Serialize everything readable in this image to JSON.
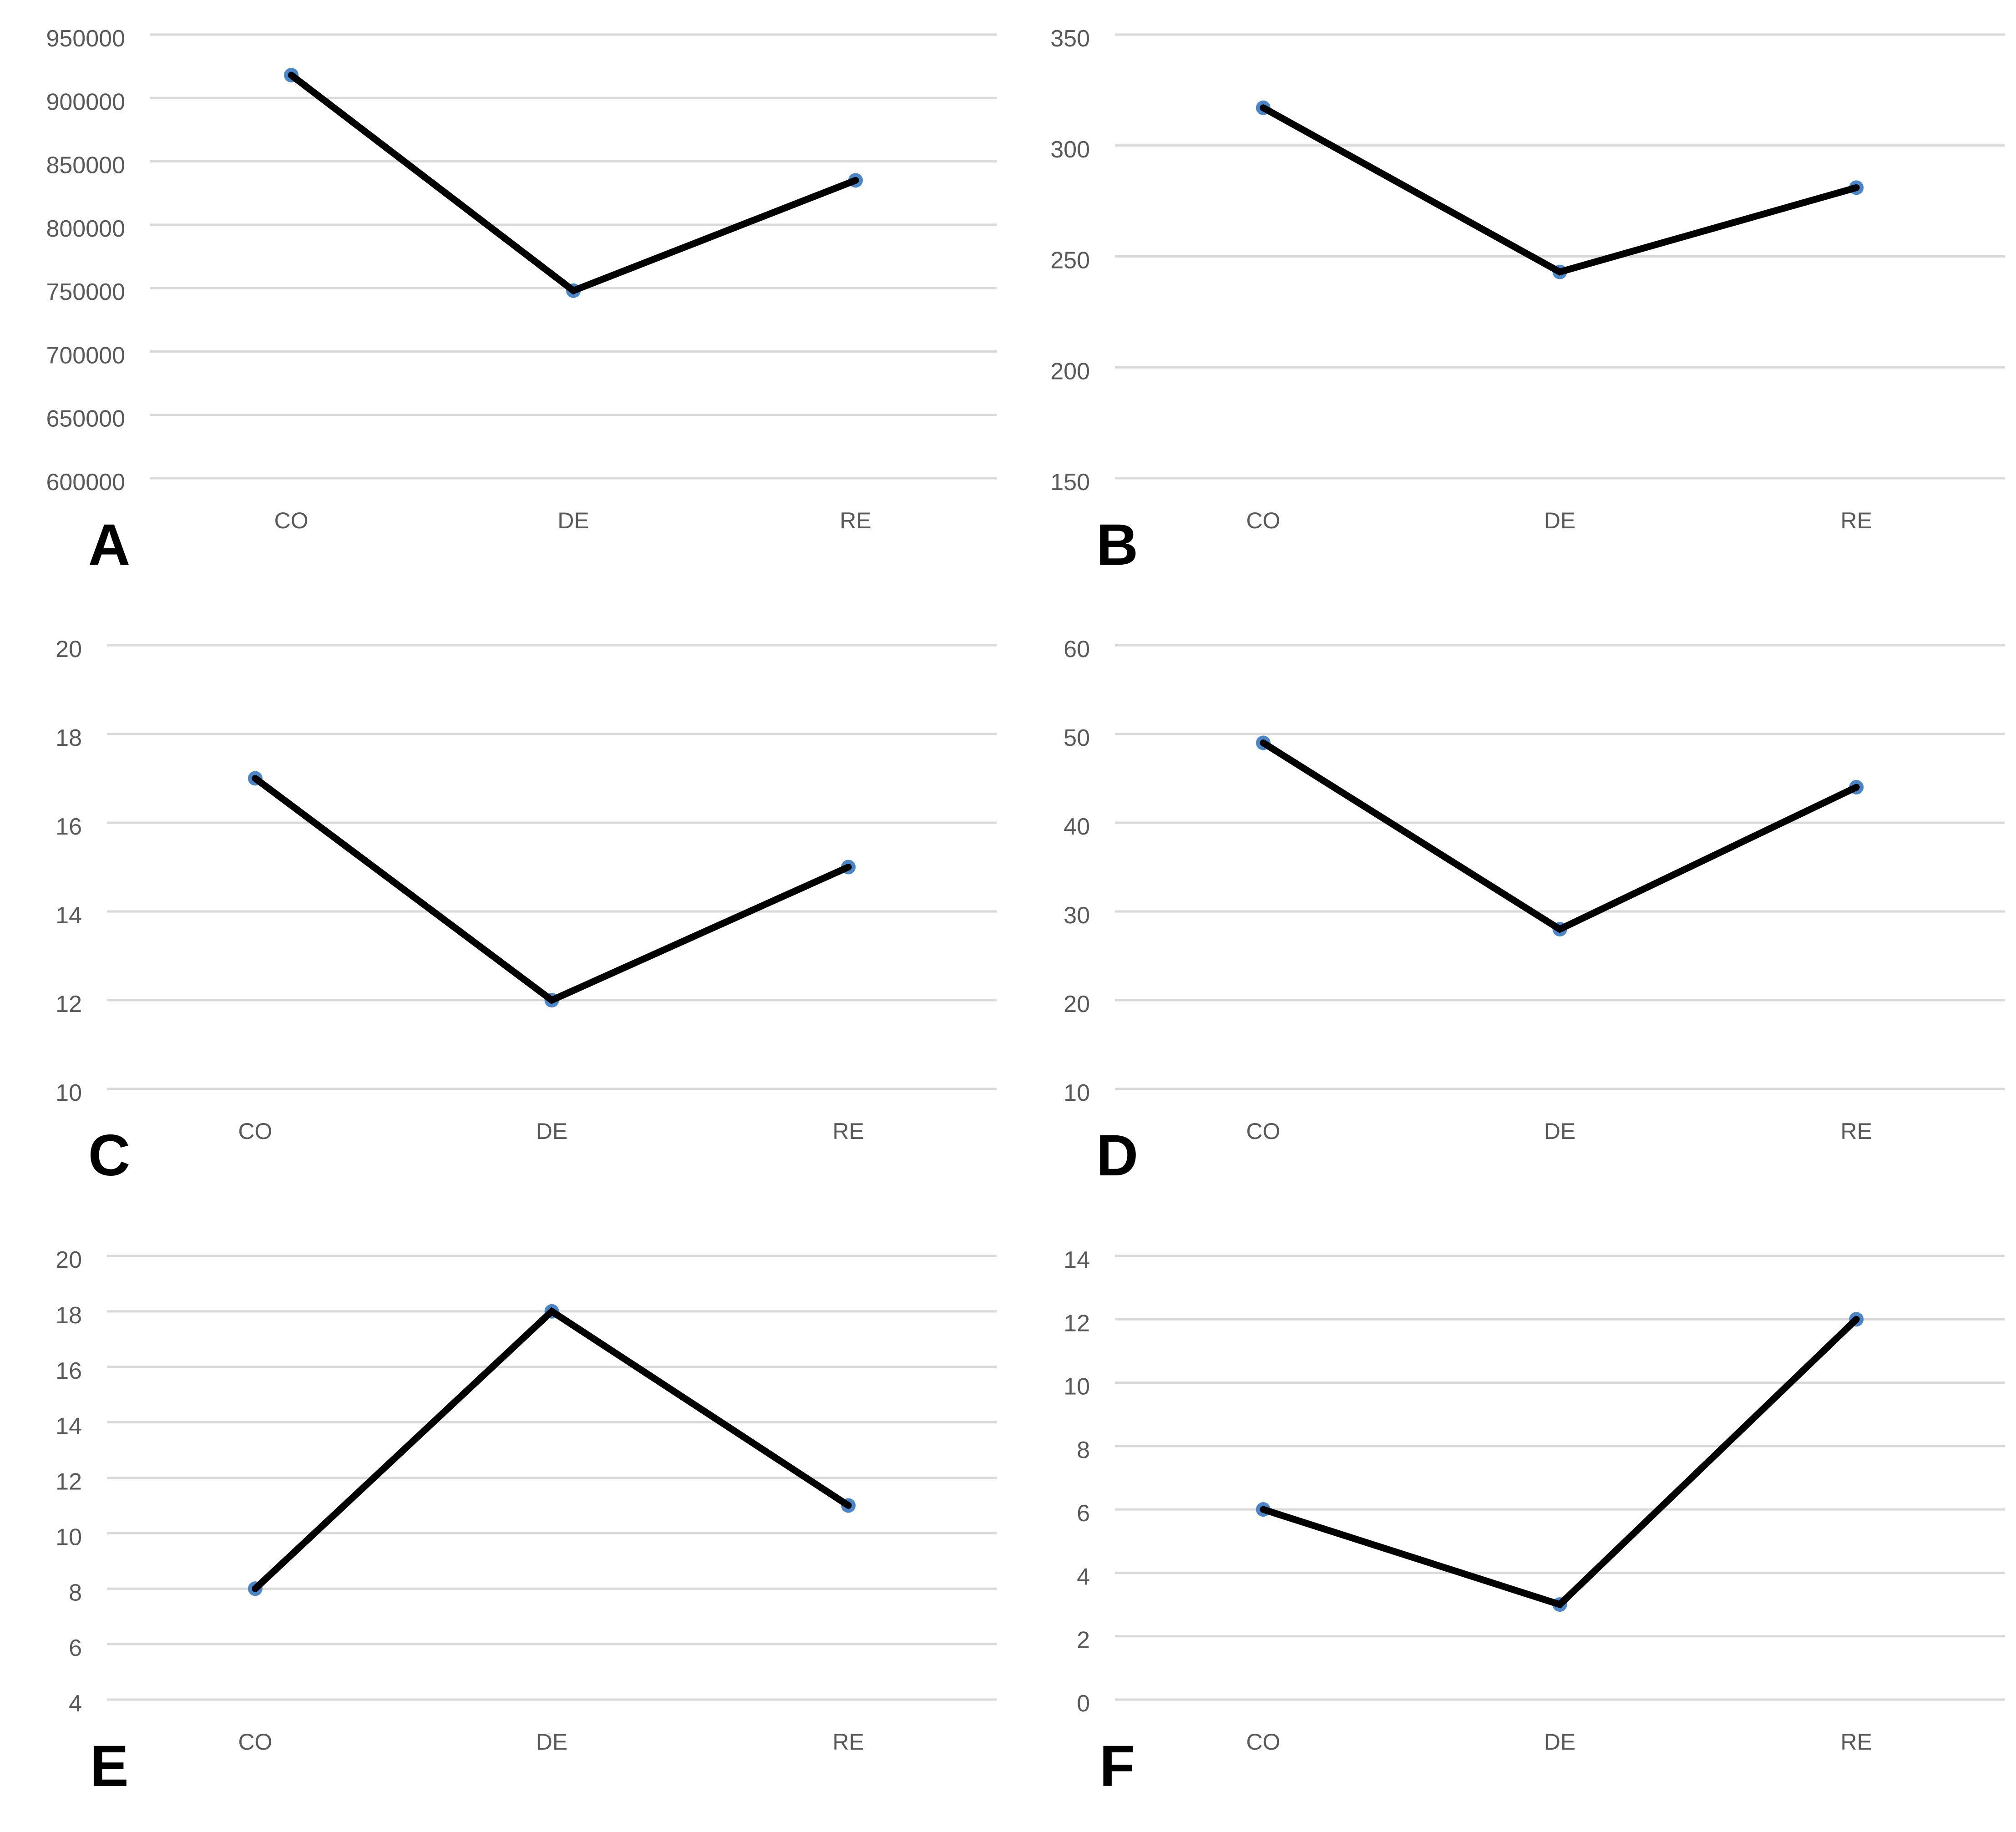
{
  "page": {
    "background": "#ffffff"
  },
  "style": {
    "series_line_color": "#000000",
    "marker_color": "#4a86c8",
    "grid_color": "#d9d9d9",
    "tick_label_color": "#595959",
    "panel_letter_color": "#000000"
  },
  "chart_data": [
    {
      "type": "line",
      "panel_label": "A",
      "categories": [
        "CO",
        "DE",
        "RE"
      ],
      "values": [
        918000,
        748000,
        835000
      ],
      "ylim": [
        600000,
        950000
      ],
      "ytick_step": 50000,
      "yticks": [
        950000,
        900000,
        850000,
        800000,
        750000,
        700000,
        650000,
        600000
      ],
      "title": "",
      "xlabel": "",
      "ylabel": "",
      "grid": true,
      "legend": "none"
    },
    {
      "type": "line",
      "panel_label": "B",
      "categories": [
        "CO",
        "DE",
        "RE"
      ],
      "values": [
        317,
        243,
        281
      ],
      "ylim": [
        150,
        350
      ],
      "ytick_step": 50,
      "yticks": [
        350,
        300,
        250,
        200,
        150
      ],
      "title": "",
      "xlabel": "",
      "ylabel": "",
      "grid": true,
      "legend": "none"
    },
    {
      "type": "line",
      "panel_label": "C",
      "categories": [
        "CO",
        "DE",
        "RE"
      ],
      "values": [
        17,
        12,
        15
      ],
      "ylim": [
        10,
        20
      ],
      "ytick_step": 2,
      "yticks": [
        20,
        18,
        16,
        14,
        12,
        10
      ],
      "title": "",
      "xlabel": "",
      "ylabel": "",
      "grid": true,
      "legend": "none"
    },
    {
      "type": "line",
      "panel_label": "D",
      "categories": [
        "CO",
        "DE",
        "RE"
      ],
      "values": [
        49,
        28,
        44
      ],
      "ylim": [
        10,
        60
      ],
      "ytick_step": 10,
      "yticks": [
        60,
        50,
        40,
        30,
        20,
        10
      ],
      "title": "",
      "xlabel": "",
      "ylabel": "",
      "grid": true,
      "legend": "none"
    },
    {
      "type": "line",
      "panel_label": "E",
      "categories": [
        "CO",
        "DE",
        "RE"
      ],
      "values": [
        8,
        18,
        11
      ],
      "ylim": [
        4,
        20
      ],
      "ytick_step": 2,
      "yticks": [
        20,
        18,
        16,
        14,
        12,
        10,
        8,
        6,
        4
      ],
      "title": "",
      "xlabel": "",
      "ylabel": "",
      "grid": true,
      "legend": "none"
    },
    {
      "type": "line",
      "panel_label": "F",
      "categories": [
        "CO",
        "DE",
        "RE"
      ],
      "values": [
        6,
        3,
        12
      ],
      "ylim": [
        0,
        14
      ],
      "ytick_step": 2,
      "yticks": [
        14,
        12,
        10,
        8,
        6,
        4,
        2,
        0
      ],
      "title": "",
      "xlabel": "",
      "ylabel": "",
      "grid": true,
      "legend": "none"
    }
  ]
}
